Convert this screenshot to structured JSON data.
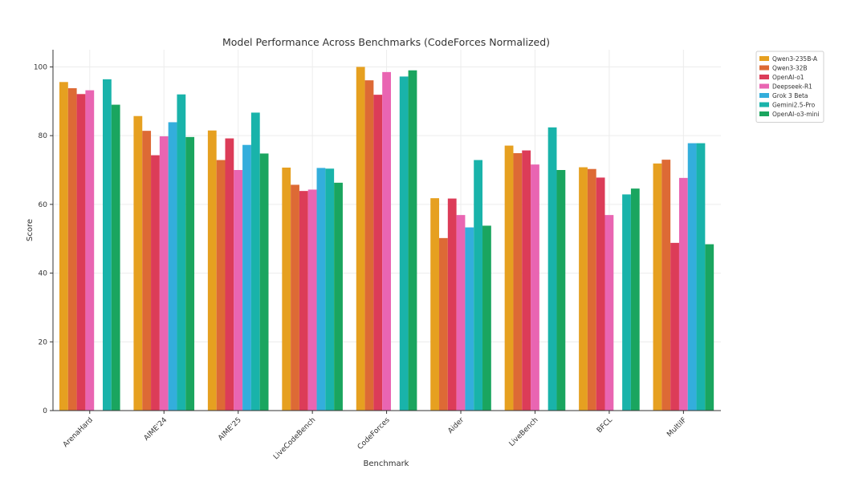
{
  "chart_data": {
    "type": "bar",
    "title": "Model Performance Across Benchmarks (CodeForces Normalized)",
    "xlabel": "Benchmark",
    "ylabel": "Score",
    "ylim": [
      0,
      105
    ],
    "yticks": [
      0,
      20,
      40,
      60,
      80,
      100
    ],
    "grid": true,
    "legend_position": "outside-top-right",
    "categories": [
      "ArenaHard",
      "AIME'24",
      "AIME'25",
      "LiveCodeBench",
      "CodeForces",
      "Aider",
      "LiveBench",
      "BFCL",
      "MultiIF"
    ],
    "series": [
      {
        "name": "Qwen3-235B-A",
        "color": "#E6A020",
        "values": [
          95.6,
          85.7,
          81.5,
          70.7,
          100.0,
          61.8,
          77.1,
          70.8,
          71.9
        ]
      },
      {
        "name": "Qwen3-32B",
        "color": "#DD6A35",
        "values": [
          93.8,
          81.4,
          72.9,
          65.7,
          96.1,
          50.2,
          74.9,
          70.3,
          73.0
        ]
      },
      {
        "name": "OpenAI-o1",
        "color": "#DC3C58",
        "values": [
          92.1,
          74.3,
          79.2,
          63.9,
          91.9,
          61.7,
          75.7,
          67.8,
          48.8
        ]
      },
      {
        "name": "Deepseek-R1",
        "color": "#E965B2",
        "values": [
          93.2,
          79.8,
          70.0,
          64.3,
          98.5,
          56.9,
          71.6,
          56.9,
          67.7
        ]
      },
      {
        "name": "Grok 3 Beta",
        "color": "#33AEDC",
        "values": [
          null,
          83.9,
          77.3,
          70.6,
          null,
          53.3,
          null,
          null,
          77.8
        ]
      },
      {
        "name": "Gemini2.5-Pro",
        "color": "#19B3AA",
        "values": [
          96.4,
          92.0,
          86.7,
          70.4,
          97.2,
          72.9,
          82.4,
          62.9,
          77.8
        ]
      },
      {
        "name": "OpenAI-o3-mini",
        "color": "#1AA55F",
        "values": [
          89.0,
          79.6,
          74.8,
          66.3,
          99.0,
          53.8,
          70.0,
          64.6,
          48.4
        ]
      }
    ]
  }
}
